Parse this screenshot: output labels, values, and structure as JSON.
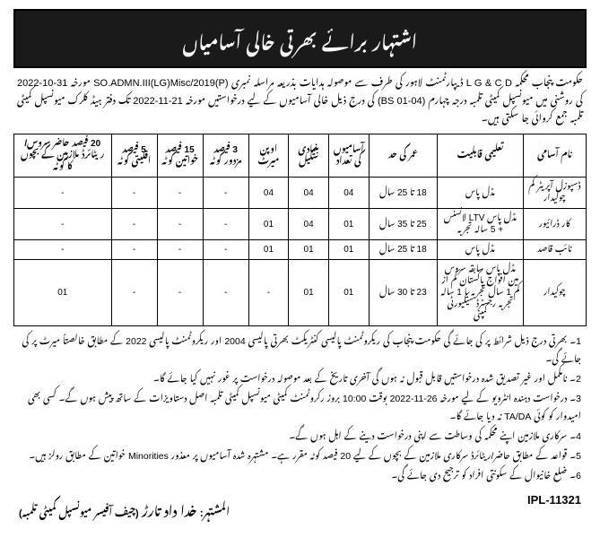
{
  "banner": {
    "title": "اشتہار برائے بھرتی خالی آسامیاں"
  },
  "intro": {
    "line1": "حکومت پنجاب محکمہ L G & C D ڈیپارٹمنٹ لاہور کی طرف سے موصولہ ہدایات بذریعہ مراسلہ",
    "line2": "نمبری SO.ADMN.III(LG)Misc/2019(P) مورخہ 31-10-2022 کی روشنی میں میونسپل کمیٹی تلمبہ درجہ چہارم (BS 01-04) کی درج",
    "line3": "ذیل خالی آسامیوں کے لیے درخواستیں مورخہ 21-11-2022 تک دفتر ہیڈ کلرک میونسپل کمیٹی تلمبہ جمع کروائی جا سکتی ہیں۔"
  },
  "table": {
    "headers": {
      "name": "نام آسامی",
      "qual": "تعلیمی قابلیت",
      "age": "عمر کی حد",
      "num": "آسامیوں کی تعداد",
      "scale": "بنیادی سکیل",
      "merit": "اوپن میرٹ",
      "lab": "3 فیصد مزدور کوٹہ",
      "wom": "15 فیصد خواتین کوٹہ",
      "min": "5 فیصد اقلیتی کوٹہ",
      "ret": "20 فیصد حاضر سروس/ریٹائرڈ ملازمین کے بچوں کا کوٹہ"
    },
    "rows": [
      {
        "name": "ڈسپوزل آپریٹر کم چوکیدار",
        "qual": "مڈل پاس",
        "age": "18 تا 25 سال",
        "num": "04",
        "scale": "04",
        "merit": "04",
        "lab": "-",
        "wom": "-",
        "min": "-",
        "ret": "-"
      },
      {
        "name": "کار ڈرائیور",
        "qual": "مڈل پاس LTV لائسنس + 5 سالہ تجربہ",
        "age": "25 تا 35 سال",
        "num": "01",
        "scale": "04",
        "merit": "01",
        "lab": "-",
        "wom": "-",
        "min": "-",
        "ret": "-"
      },
      {
        "name": "نائب قاصد",
        "qual": "مڈل پاس",
        "age": "18 تا 25 سال",
        "num": "01",
        "scale": "01",
        "merit": "01",
        "lab": "-",
        "wom": "-",
        "min": "-",
        "ret": "-"
      },
      {
        "name": "چوکیدار",
        "qual": "مڈل پاس سابقہ سروس مین افواج پاکستان کم از کم 1 سال تجربہ یا 1 سالہ تجربہ رجسٹرڈ سیکیورٹی کمپنی",
        "age": "23 تا 30 سال",
        "num": "01",
        "scale": "01",
        "merit": "-",
        "lab": "-",
        "wom": "-",
        "min": "-",
        "ret": "01"
      }
    ]
  },
  "notes": {
    "n1": "1۔ بھرتی درج ذیل شرائط پر کی جائے گی حکومت پنجاب کی ریکروٹمنٹ پالیسی کنٹریکٹ بھرتی پالیسی 2004 اور ریکروٹمنٹ پالیسی 2022 کے مطابق خالصتاً میرٹ پر کی جائے گی۔",
    "n2": "2۔ نامکمل اور غیر تصدیق شدہ درخواستیں قابل قبول نہ ہوں گی آخری تاریخ کے بعد موصولہ درخواست پر غور نہیں کیا جائے گا۔",
    "n3": "3۔ درخواست دہندہ انٹرویو کے لیے مورخہ 26-11-2022 بوقت 10:00 بروز رکروٹمنٹ کمیٹی میونسپل کمیٹی تلمبہ اصل دستاویزات کے ساتھ پیش ہوں گے۔ کسی بھی امیدوار کو کوئی TA/DA نہ دیا جائے گا۔",
    "n4": "4۔ سرکاری ملازمین اپنے محکمہ کی وساطت سے اپنی درخواست دینے کے اہل ہوں گے۔",
    "n5": "5۔ قواعد کے مطابق حاضر/ریٹائرڈ سرکاری ملازمین کے بچوں کے لیے 20 فیصد کوٹہ مقرر ہے۔ مشتہرہ شدہ آسامیوں پر معذور Minorities خواتین کے مطابق رولز ہیں۔",
    "n6": "6۔ ضلع خانیوال کے سکونتی افراد کو ترجیح دی جائے گی۔"
  },
  "footer": {
    "ipl": "IPL-11321",
    "sig_label": "المشتہر:",
    "sig_name": "خدا داد تارڑ",
    "sig_title": "(چیف آفیسر میونسپل کمیٹی تلمبہ)"
  }
}
